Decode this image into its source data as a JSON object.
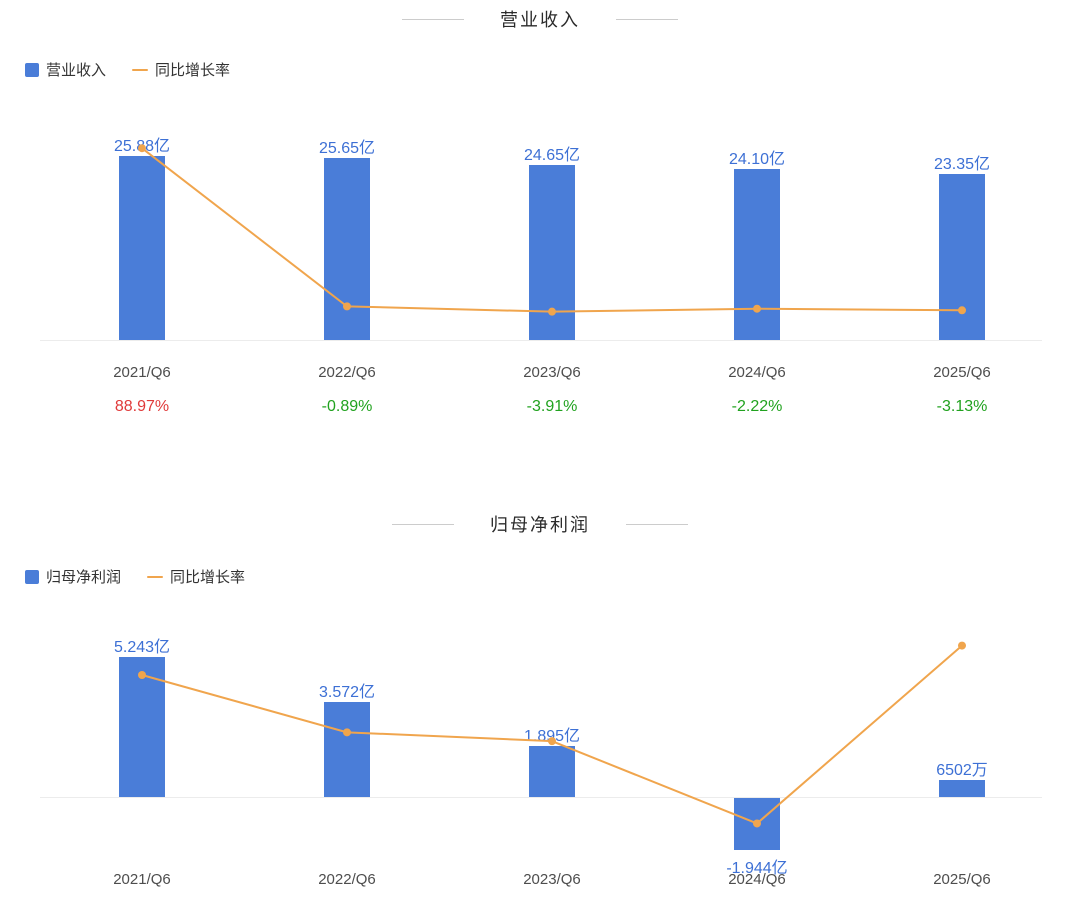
{
  "colors": {
    "bar_blue": "#4a7dd8",
    "value_label_blue": "#3d70d5",
    "line_orange": "#f0a54d",
    "growth_up_red": "#e03a3a",
    "growth_down_green": "#21a21f",
    "axis_line": "#ececec",
    "title_text": "#2b2b2b",
    "category_text": "#4d4d4d",
    "legend_text": "#333333"
  },
  "chart_data": [
    {
      "type": "bar",
      "title": "营业收入",
      "legend": [
        {
          "label": "营业收入",
          "swatch": "bar"
        },
        {
          "label": "同比增长率",
          "swatch": "line"
        }
      ],
      "categories": [
        "2021/Q6",
        "2022/Q6",
        "2023/Q6",
        "2024/Q6",
        "2025/Q6"
      ],
      "series": [
        {
          "name": "营业收入",
          "type": "bar",
          "unit": "亿",
          "values": [
            25.88,
            25.65,
            24.65,
            24.1,
            23.35
          ],
          "labels": [
            "25.88亿",
            "25.65亿",
            "24.65亿",
            "24.10亿",
            "23.35亿"
          ]
        },
        {
          "name": "同比增长率",
          "type": "line",
          "values": [
            88.97,
            -0.89,
            -3.91,
            -2.22,
            -3.13
          ],
          "labels": [
            "88.97%",
            "-0.89%",
            "-3.91%",
            "-2.22%",
            "-3.13%"
          ],
          "label_colors": [
            "red",
            "green",
            "green",
            "green",
            "green"
          ]
        }
      ],
      "ylim": [
        0,
        31
      ],
      "growth_ylim": [
        -20,
        105
      ],
      "legend_position": "top-left",
      "grid": false
    },
    {
      "type": "bar",
      "title": "归母净利润",
      "legend": [
        {
          "label": "归母净利润",
          "swatch": "bar"
        },
        {
          "label": "同比增长率",
          "swatch": "line"
        }
      ],
      "categories": [
        "2021/Q6",
        "2022/Q6",
        "2023/Q6",
        "2024/Q6",
        "2025/Q6"
      ],
      "series": [
        {
          "name": "归母净利润",
          "type": "bar",
          "unit": "亿",
          "values": [
            5.243,
            3.572,
            1.895,
            -1.944,
            0.6502
          ],
          "labels": [
            "5.243亿",
            "3.572亿",
            "1.895亿",
            "-1.944亿",
            "6502万"
          ]
        },
        {
          "name": "同比增长率",
          "type": "line",
          "labels": null,
          "line_shape_norm": [
            0.83,
            0.44,
            0.38,
            -0.18,
            1.03
          ]
        }
      ],
      "ylim": [
        0,
        5.5
      ],
      "legend_position": "top-left",
      "grid": false
    }
  ]
}
